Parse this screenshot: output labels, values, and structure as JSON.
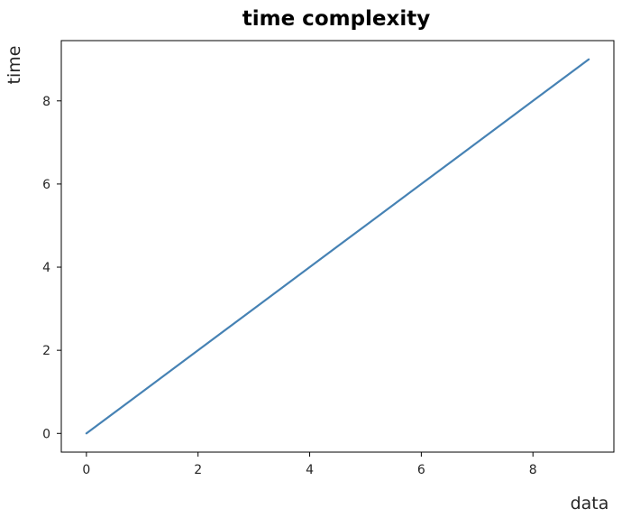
{
  "chart_data": {
    "type": "line",
    "title": "time complexity",
    "xlabel": "data",
    "ylabel": "time",
    "x": [
      0,
      1,
      2,
      3,
      4,
      5,
      6,
      7,
      8,
      9
    ],
    "series": [
      {
        "values": [
          0,
          1,
          2,
          3,
          4,
          5,
          6,
          7,
          8,
          9
        ],
        "color": "#4682b4"
      }
    ],
    "xlim": [
      -0.45,
      9.45
    ],
    "ylim": [
      -0.45,
      9.45
    ],
    "xticks": [
      0,
      2,
      4,
      6,
      8
    ],
    "yticks": [
      0,
      2,
      4,
      6,
      8
    ],
    "grid": false,
    "legend": false
  }
}
